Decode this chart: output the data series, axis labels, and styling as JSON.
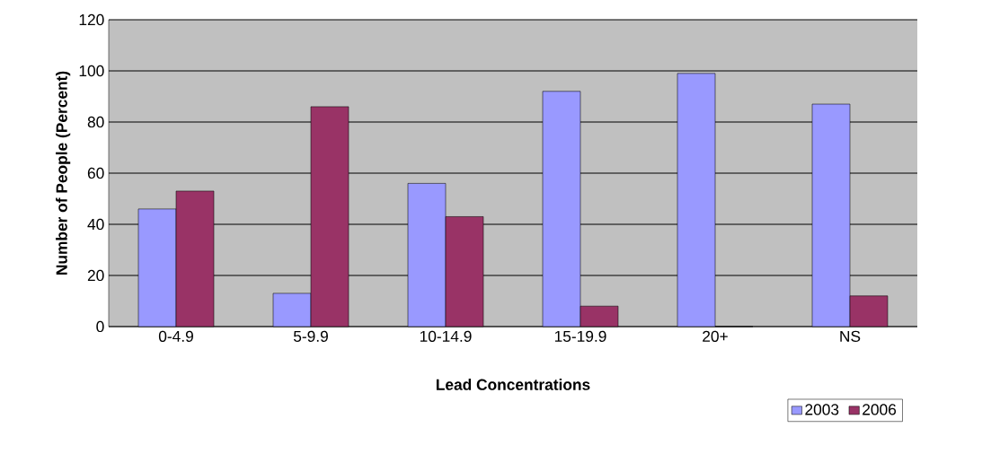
{
  "chart_data": {
    "type": "bar",
    "xlabel": "Lead Concentrations",
    "ylabel": "Number of People (Percent)",
    "categories": [
      "0-4.9",
      "5-9.9",
      "10-14.9",
      "15-19.9",
      "20+",
      "NS"
    ],
    "series": [
      {
        "name": "2003",
        "color": "#9999ff",
        "values": [
          46,
          13,
          56,
          92,
          99,
          87
        ]
      },
      {
        "name": "2006",
        "color": "#993366",
        "values": [
          53,
          86,
          43,
          8,
          0,
          12
        ]
      }
    ],
    "ylim": [
      0,
      120
    ],
    "yticks": [
      0,
      20,
      40,
      60,
      80,
      100,
      120
    ],
    "grid": "y",
    "legend": "bottom right"
  }
}
